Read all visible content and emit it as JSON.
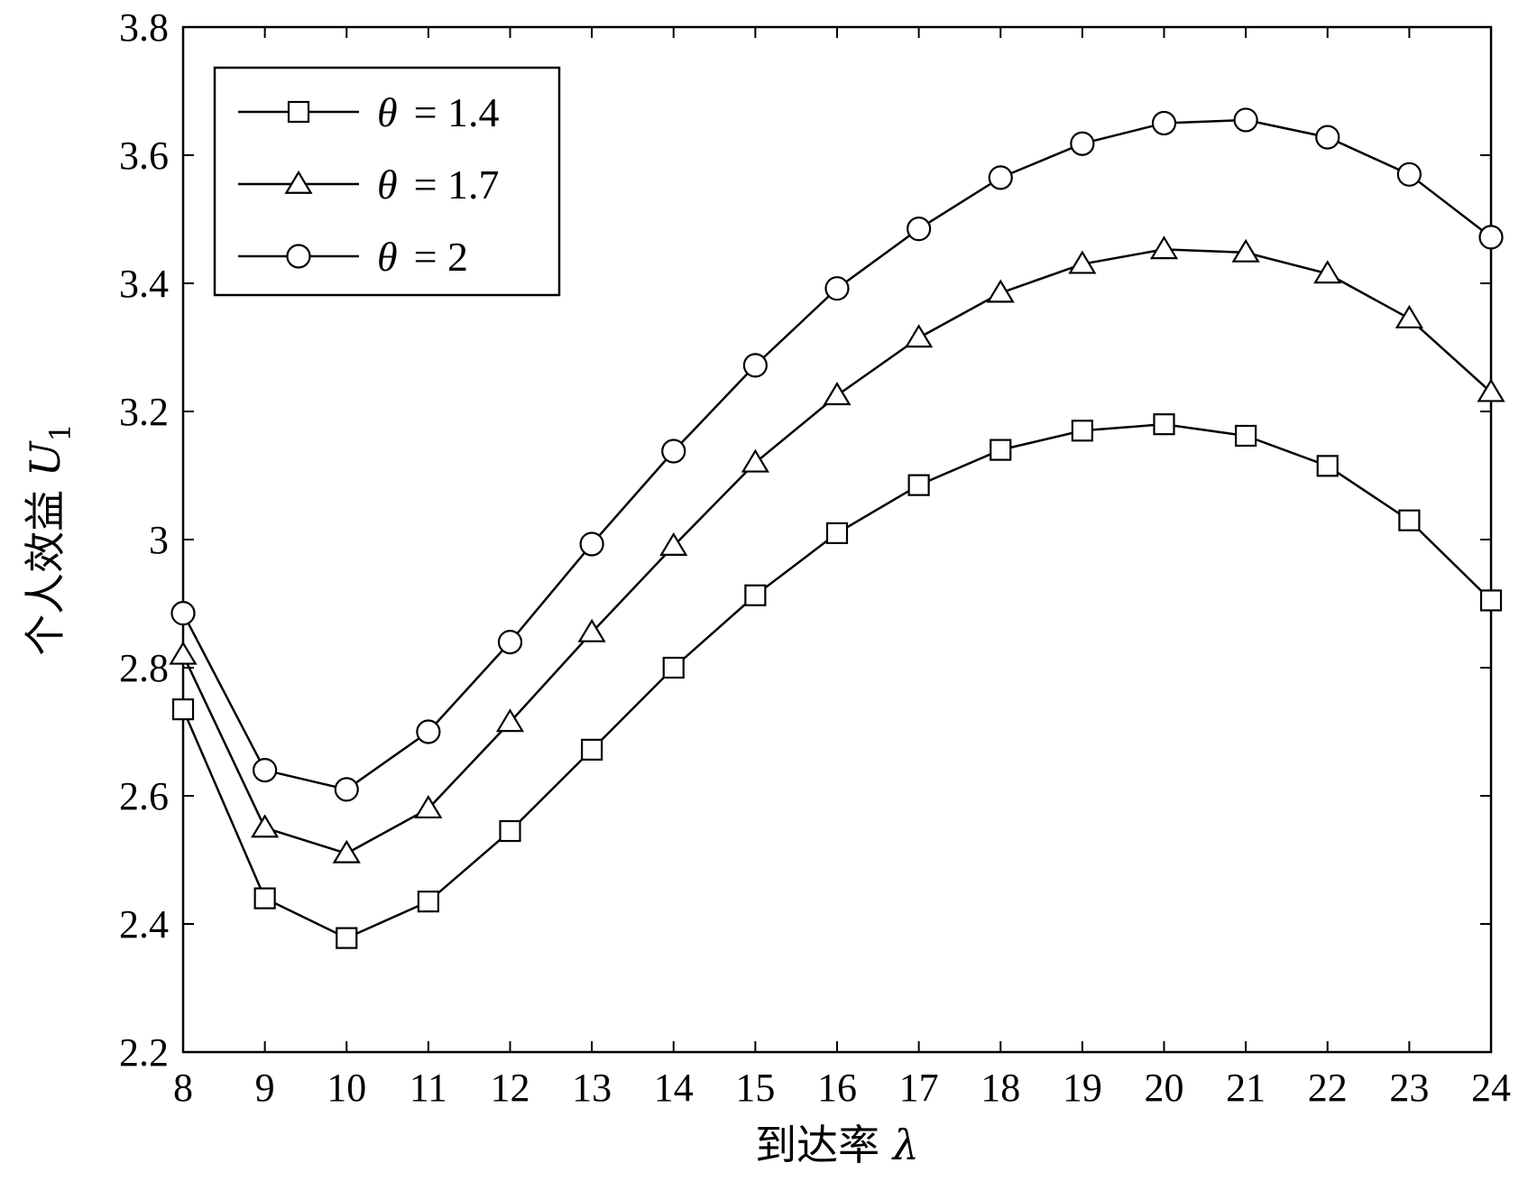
{
  "chart_data": {
    "type": "line",
    "xlabel": "到达率",
    "xlabel_symbol": "λ",
    "ylabel": "个人效益",
    "ylabel_symbol": "U",
    "ylabel_subscript": "1",
    "xlim": [
      8,
      24
    ],
    "ylim": [
      2.2,
      3.8
    ],
    "x": [
      8,
      9,
      10,
      11,
      12,
      13,
      14,
      15,
      16,
      17,
      18,
      19,
      20,
      21,
      22,
      23,
      24
    ],
    "x_ticks": [
      "8",
      "9",
      "10",
      "11",
      "12",
      "13",
      "14",
      "15",
      "16",
      "17",
      "18",
      "19",
      "20",
      "21",
      "22",
      "23",
      "24"
    ],
    "y_ticks": [
      {
        "value": 2.2,
        "label": "2.2"
      },
      {
        "value": 2.4,
        "label": "2.4"
      },
      {
        "value": 2.6,
        "label": "2.6"
      },
      {
        "value": 2.8,
        "label": "2.8"
      },
      {
        "value": 3.0,
        "label": "3"
      },
      {
        "value": 3.2,
        "label": "3.2"
      },
      {
        "value": 3.4,
        "label": "3.4"
      },
      {
        "value": 3.6,
        "label": "3.6"
      },
      {
        "value": 3.8,
        "label": "3.8"
      }
    ],
    "grid": false,
    "legend_position": "top-left",
    "series": [
      {
        "name": "θ = 1.4",
        "symbol": "θ",
        "value_text": "= 1.4",
        "marker": "square",
        "values": [
          2.735,
          2.44,
          2.378,
          2.435,
          2.545,
          2.672,
          2.8,
          2.913,
          3.01,
          3.085,
          3.14,
          3.17,
          3.18,
          3.162,
          3.115,
          3.03,
          2.905
        ]
      },
      {
        "name": "θ = 1.7",
        "symbol": "θ",
        "value_text": "= 1.7",
        "marker": "triangle",
        "values": [
          2.82,
          2.55,
          2.51,
          2.58,
          2.715,
          2.855,
          2.99,
          3.12,
          3.225,
          3.315,
          3.385,
          3.43,
          3.453,
          3.448,
          3.415,
          3.345,
          3.23
        ]
      },
      {
        "name": "θ = 2",
        "symbol": "θ",
        "value_text": "= 2",
        "marker": "circle",
        "values": [
          2.885,
          2.64,
          2.61,
          2.7,
          2.84,
          2.993,
          3.138,
          3.272,
          3.392,
          3.485,
          3.565,
          3.618,
          3.65,
          3.655,
          3.628,
          3.57,
          3.472
        ]
      }
    ],
    "colors": {
      "line": "#000000",
      "background": "#ffffff"
    }
  }
}
